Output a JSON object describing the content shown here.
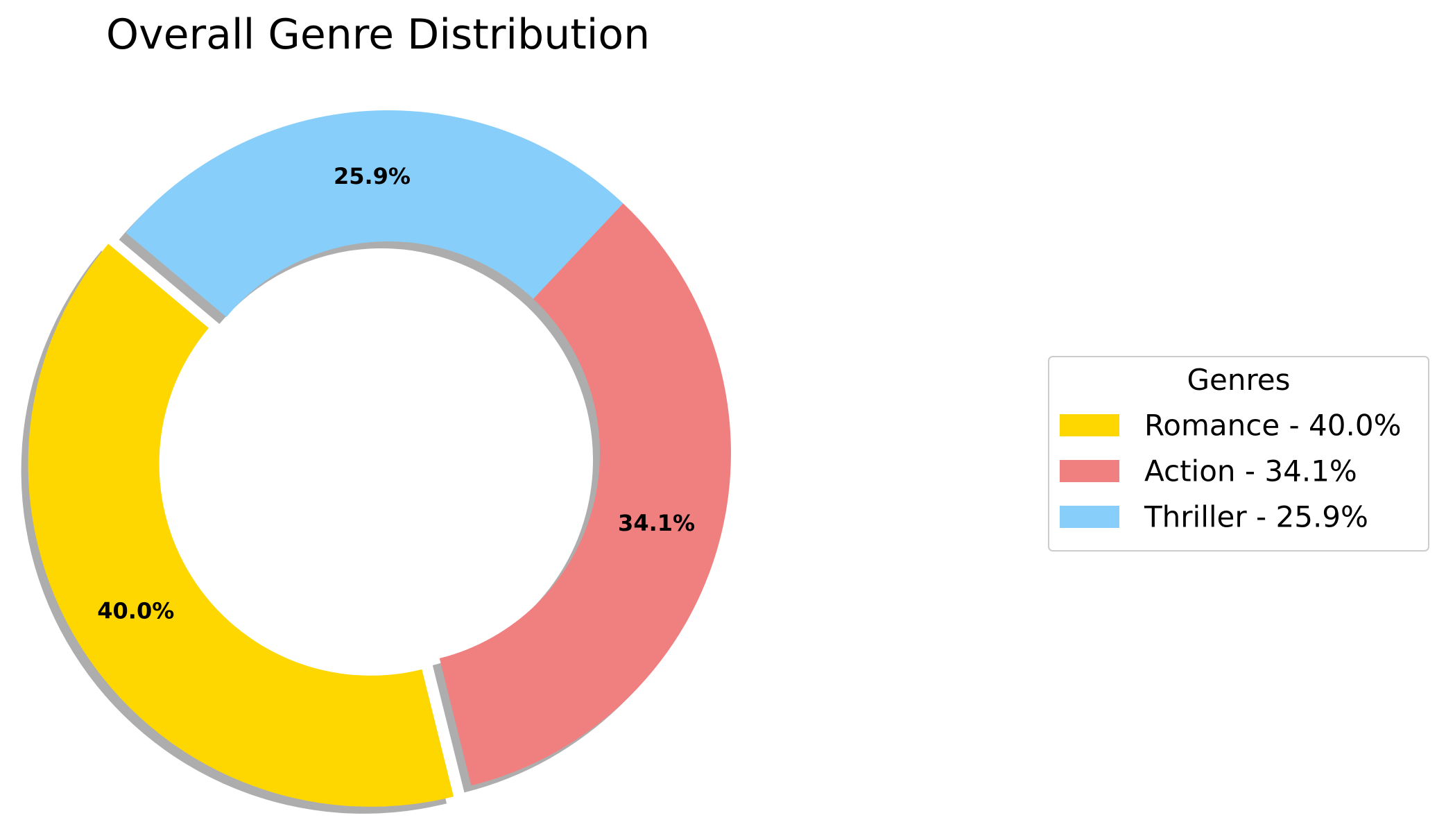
{
  "chart_data": {
    "type": "pie",
    "variant": "donut",
    "title": "Overall Genre Distribution",
    "categories": [
      "Romance",
      "Action",
      "Thriller"
    ],
    "values": [
      40.0,
      34.1,
      25.9
    ],
    "value_labels": [
      "40.0%",
      "34.1%",
      "25.9%"
    ],
    "colors": [
      "#FFD700",
      "#F08080",
      "#87CEFA"
    ],
    "exploded": [
      true,
      false,
      false
    ],
    "shadow": true,
    "start_angle_deg": 140,
    "direction": "counterclockwise",
    "legend": {
      "title": "Genres",
      "placement": "right",
      "entries": [
        "Romance - 40.0%",
        "Action - 34.1%",
        "Thriller - 25.9%"
      ]
    }
  }
}
